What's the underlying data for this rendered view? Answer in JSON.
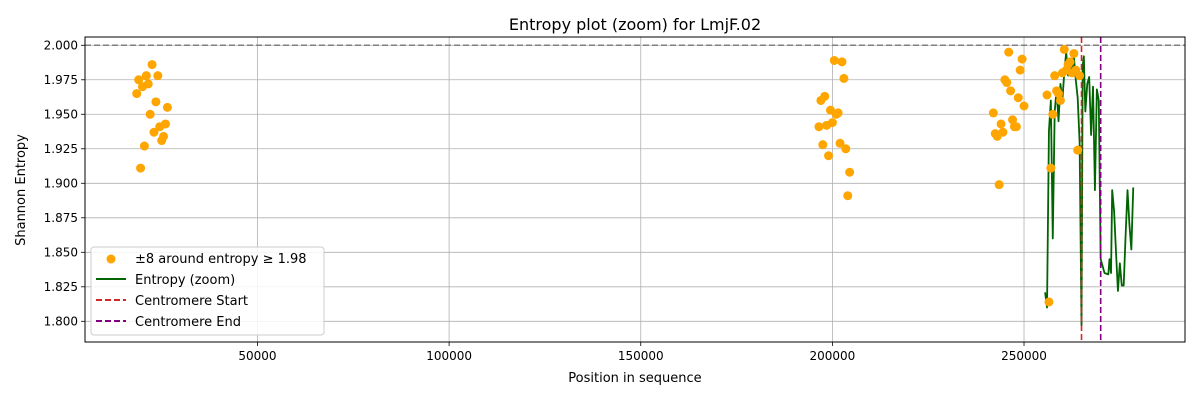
{
  "chart_data": {
    "type": "scatter",
    "title": "Entropy plot (zoom) for LmjF.02",
    "xlabel": "Position in sequence",
    "ylabel": "Shannon Entropy",
    "xlim": [
      5000,
      292000
    ],
    "ylim": [
      1.785,
      2.006
    ],
    "x_ticks": [
      50000,
      100000,
      150000,
      200000,
      250000
    ],
    "y_ticks": [
      1.8,
      1.825,
      1.85,
      1.875,
      1.9,
      1.925,
      1.95,
      1.975,
      2.0
    ],
    "x_tick_labels": [
      "50000",
      "100000",
      "150000",
      "200000",
      "250000"
    ],
    "y_tick_labels": [
      "1.800",
      "1.825",
      "1.850",
      "1.875",
      "1.900",
      "1.925",
      "1.950",
      "1.975",
      "2.000"
    ],
    "grid": true,
    "legend_position": "lower-left",
    "reference_line": {
      "y": 2.0,
      "color": "#808080",
      "style": "dashed"
    },
    "vertical_lines": [
      {
        "name": "Centromere Start",
        "x": 265000,
        "color": "#d62728"
      },
      {
        "name": "Centromere End",
        "x": 270000,
        "color": "#800080"
      }
    ],
    "series": [
      {
        "name": "±8 around entropy ≥ 1.98",
        "kind": "scatter",
        "color": "#FFA500",
        "points": [
          [
            18500,
            1.965
          ],
          [
            19000,
            1.975
          ],
          [
            19500,
            1.911
          ],
          [
            20000,
            1.97
          ],
          [
            20500,
            1.927
          ],
          [
            21000,
            1.978
          ],
          [
            21500,
            1.972
          ],
          [
            22000,
            1.95
          ],
          [
            22500,
            1.986
          ],
          [
            23000,
            1.937
          ],
          [
            23500,
            1.959
          ],
          [
            24000,
            1.978
          ],
          [
            24500,
            1.941
          ],
          [
            25000,
            1.931
          ],
          [
            25500,
            1.934
          ],
          [
            26000,
            1.943
          ],
          [
            26500,
            1.955
          ],
          [
            196500,
            1.941
          ],
          [
            197000,
            1.96
          ],
          [
            197500,
            1.928
          ],
          [
            198000,
            1.963
          ],
          [
            198500,
            1.942
          ],
          [
            199000,
            1.92
          ],
          [
            199500,
            1.953
          ],
          [
            200000,
            1.944
          ],
          [
            200500,
            1.989
          ],
          [
            201000,
            1.95
          ],
          [
            201500,
            1.951
          ],
          [
            202000,
            1.929
          ],
          [
            202500,
            1.988
          ],
          [
            203000,
            1.976
          ],
          [
            203500,
            1.925
          ],
          [
            204000,
            1.891
          ],
          [
            204500,
            1.908
          ],
          [
            242000,
            1.951
          ],
          [
            242500,
            1.936
          ],
          [
            243000,
            1.934
          ],
          [
            243500,
            1.899
          ],
          [
            244000,
            1.943
          ],
          [
            244500,
            1.937
          ],
          [
            245000,
            1.975
          ],
          [
            245500,
            1.973
          ],
          [
            246000,
            1.995
          ],
          [
            246500,
            1.967
          ],
          [
            247000,
            1.946
          ],
          [
            247500,
            1.941
          ],
          [
            248000,
            1.941
          ],
          [
            248500,
            1.962
          ],
          [
            249000,
            1.982
          ],
          [
            249500,
            1.99
          ],
          [
            250000,
            1.956
          ],
          [
            256000,
            1.964
          ],
          [
            256500,
            1.814
          ],
          [
            257000,
            1.911
          ],
          [
            257500,
            1.95
          ],
          [
            258000,
            1.978
          ],
          [
            258500,
            1.967
          ],
          [
            259000,
            1.965
          ],
          [
            259500,
            1.96
          ],
          [
            260000,
            1.98
          ],
          [
            260500,
            1.997
          ],
          [
            261000,
            1.982
          ],
          [
            261500,
            1.986
          ],
          [
            262000,
            1.988
          ],
          [
            262500,
            1.98
          ],
          [
            263000,
            1.994
          ],
          [
            263500,
            1.982
          ],
          [
            264000,
            1.924
          ],
          [
            264500,
            1.978
          ]
        ]
      },
      {
        "name": "Entropy (zoom)",
        "kind": "line",
        "color": "#006400",
        "points": [
          [
            255500,
            1.821
          ],
          [
            256000,
            1.81
          ],
          [
            256500,
            1.938
          ],
          [
            257000,
            1.96
          ],
          [
            257500,
            1.86
          ],
          [
            258000,
            1.952
          ],
          [
            258500,
            1.968
          ],
          [
            259000,
            1.945
          ],
          [
            259500,
            1.972
          ],
          [
            260000,
            1.96
          ],
          [
            260500,
            1.98
          ],
          [
            261000,
            1.995
          ],
          [
            261500,
            1.978
          ],
          [
            262000,
            1.99
          ],
          [
            262500,
            1.98
          ],
          [
            263000,
            1.992
          ],
          [
            263500,
            1.975
          ],
          [
            264000,
            1.962
          ],
          [
            264500,
            1.93
          ],
          [
            265000,
            1.797
          ],
          [
            265300,
            1.985
          ],
          [
            265600,
            1.992
          ],
          [
            266000,
            1.952
          ],
          [
            266500,
            1.972
          ],
          [
            267000,
            1.977
          ],
          [
            267500,
            1.935
          ],
          [
            268000,
            1.97
          ],
          [
            268500,
            1.895
          ],
          [
            269000,
            1.968
          ],
          [
            269500,
            1.96
          ],
          [
            270000,
            1.845
          ],
          [
            271000,
            1.835
          ],
          [
            272000,
            1.834
          ],
          [
            272300,
            1.845
          ],
          [
            272700,
            1.835
          ],
          [
            273000,
            1.895
          ],
          [
            273500,
            1.88
          ],
          [
            274000,
            1.85
          ],
          [
            274500,
            1.822
          ],
          [
            275000,
            1.842
          ],
          [
            275500,
            1.826
          ],
          [
            276000,
            1.826
          ],
          [
            276500,
            1.862
          ],
          [
            277000,
            1.895
          ],
          [
            277500,
            1.87
          ],
          [
            278000,
            1.852
          ],
          [
            278500,
            1.897
          ]
        ]
      }
    ]
  }
}
